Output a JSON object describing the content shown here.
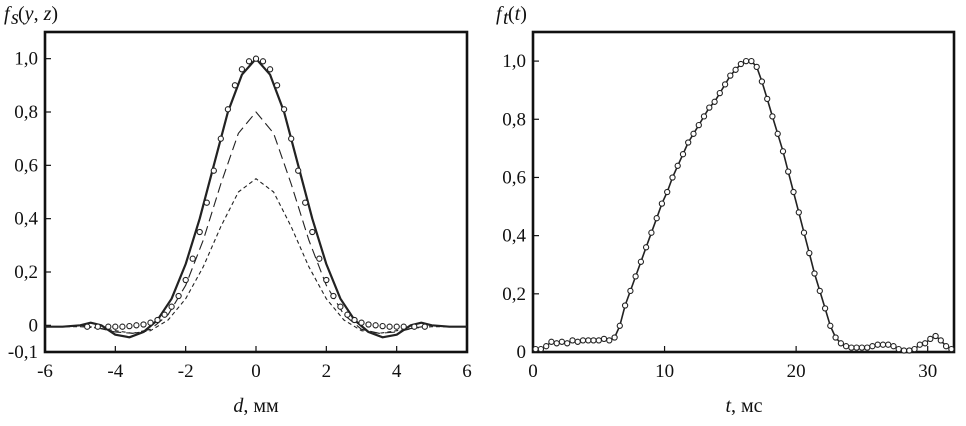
{
  "chart_data": [
    {
      "type": "line",
      "ylabel": "f_s(y, z)",
      "xlabel": "d, мм",
      "xlim": [
        -6,
        6
      ],
      "ylim": [
        -0.1,
        1.1
      ],
      "xticks": [
        "-6",
        "-4",
        "-2",
        "0",
        "2",
        "4",
        "6"
      ],
      "yticks": [
        "-0,1",
        "0",
        "0,2",
        "0,4",
        "0,6",
        "0,8",
        "1,0"
      ],
      "grid": false,
      "series": [
        {
          "style": "solid",
          "x": [
            -6,
            -5.5,
            -5,
            -4.7,
            -4.4,
            -4,
            -3.6,
            -3.2,
            -2.8,
            -2.4,
            -2,
            -1.6,
            -1.2,
            -0.8,
            -0.4,
            0,
            0.4,
            0.8,
            1.2,
            1.6,
            2,
            2.4,
            2.8,
            3.2,
            3.6,
            4,
            4.4,
            4.7,
            5,
            5.5,
            6
          ],
          "y": [
            -0.005,
            -0.005,
            0.0,
            0.01,
            0.0,
            -0.035,
            -0.045,
            -0.025,
            0.02,
            0.1,
            0.23,
            0.4,
            0.6,
            0.8,
            0.94,
            1.0,
            0.94,
            0.8,
            0.6,
            0.4,
            0.23,
            0.1,
            0.02,
            -0.025,
            -0.045,
            -0.035,
            0.0,
            0.01,
            0.0,
            -0.005,
            -0.005
          ]
        },
        {
          "style": "long-dash",
          "x": [
            -5.8,
            -5.5,
            -5,
            -4.5,
            -4,
            -3.5,
            -3,
            -2.5,
            -2,
            -1.5,
            -1,
            -0.5,
            0,
            0.5,
            1,
            1.5,
            2,
            2.5,
            3,
            3.5,
            4,
            4.5,
            5,
            5.5,
            5.8
          ],
          "y": [
            -0.005,
            -0.005,
            0.0,
            -0.01,
            -0.025,
            -0.03,
            -0.015,
            0.04,
            0.15,
            0.32,
            0.53,
            0.72,
            0.8,
            0.72,
            0.53,
            0.32,
            0.15,
            0.04,
            -0.015,
            -0.03,
            -0.025,
            -0.01,
            0.0,
            -0.005,
            -0.005
          ]
        },
        {
          "style": "short-dash",
          "x": [
            -5.8,
            -5,
            -4.5,
            -4,
            -3.5,
            -3,
            -2.5,
            -2,
            -1.5,
            -1,
            -0.5,
            0,
            0.5,
            1,
            1.5,
            2,
            2.5,
            3,
            3.5,
            4,
            4.5,
            5,
            5.8
          ],
          "y": [
            -0.005,
            -0.005,
            -0.01,
            -0.02,
            -0.03,
            -0.02,
            0.02,
            0.1,
            0.22,
            0.37,
            0.5,
            0.55,
            0.5,
            0.37,
            0.22,
            0.1,
            0.02,
            -0.02,
            -0.03,
            -0.02,
            -0.01,
            -0.005,
            -0.005
          ]
        },
        {
          "style": "circles",
          "x": [
            -4.8,
            -4.5,
            -4.2,
            -4,
            -3.8,
            -3.6,
            -3.4,
            -3.2,
            -3,
            -2.8,
            -2.6,
            -2.4,
            -2.2,
            -2,
            -1.8,
            -1.6,
            -1.4,
            -1.2,
            -1,
            -0.8,
            -0.6,
            -0.4,
            -0.2,
            0,
            0.2,
            0.4,
            0.6,
            0.8,
            1,
            1.2,
            1.4,
            1.6,
            1.8,
            2,
            2.2,
            2.4,
            2.6,
            2.8,
            3,
            3.2,
            3.4,
            3.6,
            3.8,
            4,
            4.2,
            4.5,
            4.8
          ],
          "y": [
            -0.005,
            -0.005,
            -0.005,
            -0.005,
            -0.005,
            -0.003,
            0.0,
            0.003,
            0.01,
            0.02,
            0.04,
            0.07,
            0.11,
            0.17,
            0.25,
            0.35,
            0.46,
            0.58,
            0.7,
            0.81,
            0.9,
            0.96,
            0.99,
            1.0,
            0.99,
            0.96,
            0.9,
            0.81,
            0.7,
            0.58,
            0.46,
            0.35,
            0.25,
            0.17,
            0.11,
            0.07,
            0.04,
            0.02,
            0.01,
            0.003,
            0.0,
            -0.003,
            -0.005,
            -0.005,
            -0.005,
            -0.005,
            -0.005
          ]
        }
      ]
    },
    {
      "type": "line",
      "ylabel": "f_t(t)",
      "xlabel": "t, мс",
      "xlim": [
        0,
        32
      ],
      "ylim": [
        0,
        1.1
      ],
      "xticks": [
        "0",
        "10",
        "20",
        "30"
      ],
      "yticks": [
        "0",
        "0,2",
        "0,4",
        "0,6",
        "0,8",
        "1,0"
      ],
      "grid": false,
      "series": [
        {
          "style": "solid-with-circles",
          "x": [
            0.2,
            0.6,
            1.0,
            1.4,
            1.8,
            2.2,
            2.6,
            3.0,
            3.4,
            3.8,
            4.2,
            4.6,
            5.0,
            5.4,
            5.8,
            6.2,
            6.6,
            7.0,
            7.4,
            7.8,
            8.2,
            8.6,
            9.0,
            9.4,
            9.8,
            10.2,
            10.6,
            11.0,
            11.4,
            11.8,
            12.2,
            12.6,
            13.0,
            13.4,
            13.8,
            14.2,
            14.6,
            15.0,
            15.4,
            15.8,
            16.2,
            16.6,
            17.0,
            17.4,
            17.8,
            18.2,
            18.6,
            19.0,
            19.4,
            19.8,
            20.2,
            20.6,
            21.0,
            21.4,
            21.8,
            22.2,
            22.6,
            23.0,
            23.4,
            23.8,
            24.2,
            24.6,
            25.0,
            25.4,
            25.8,
            26.2,
            26.6,
            27.0,
            27.4,
            27.8,
            28.2,
            28.6,
            29.0,
            29.4,
            29.8,
            30.2,
            30.6,
            31.0,
            31.4,
            31.8
          ],
          "y": [
            0.01,
            0.01,
            0.02,
            0.035,
            0.03,
            0.035,
            0.03,
            0.04,
            0.035,
            0.04,
            0.04,
            0.04,
            0.04,
            0.045,
            0.04,
            0.05,
            0.09,
            0.16,
            0.21,
            0.26,
            0.31,
            0.36,
            0.41,
            0.46,
            0.51,
            0.55,
            0.6,
            0.64,
            0.68,
            0.72,
            0.75,
            0.78,
            0.81,
            0.84,
            0.86,
            0.89,
            0.92,
            0.95,
            0.97,
            0.99,
            1.0,
            1.0,
            0.98,
            0.93,
            0.87,
            0.81,
            0.75,
            0.69,
            0.62,
            0.55,
            0.48,
            0.41,
            0.34,
            0.27,
            0.21,
            0.15,
            0.09,
            0.05,
            0.03,
            0.02,
            0.015,
            0.015,
            0.015,
            0.015,
            0.02,
            0.025,
            0.025,
            0.025,
            0.02,
            0.01,
            0.005,
            0.005,
            0.01,
            0.025,
            0.03,
            0.045,
            0.055,
            0.04,
            0.02,
            0.01
          ]
        }
      ]
    }
  ]
}
